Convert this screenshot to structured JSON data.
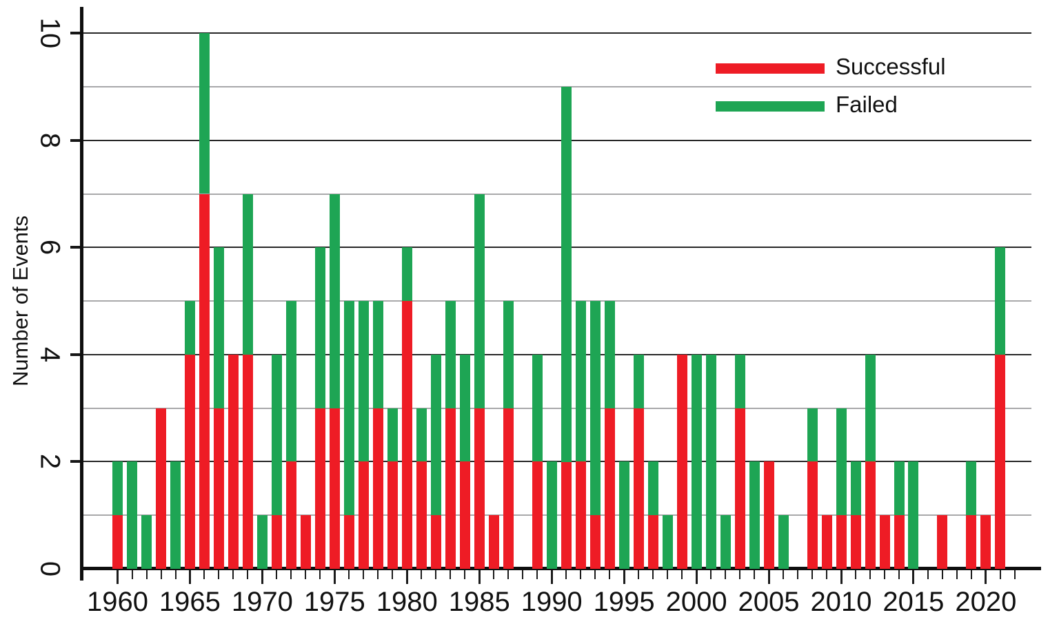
{
  "chart_data": {
    "type": "bar",
    "stacked": true,
    "title": "",
    "ylabel": "Number of Events",
    "ylim": [
      0,
      10
    ],
    "yticks": [
      0,
      2,
      4,
      6,
      8,
      10
    ],
    "gridlines_every": 1,
    "grid": {
      "minor_color": "#a8a8aa",
      "major_color": "#262626"
    },
    "x_major_ticks": [
      1960,
      1965,
      1970,
      1975,
      1980,
      1985,
      1990,
      1995,
      2000,
      2005,
      2010,
      2015,
      2020
    ],
    "x_minor_tick_range": [
      1960,
      2022
    ],
    "categories": [
      1960,
      1961,
      1962,
      1963,
      1964,
      1965,
      1966,
      1967,
      1968,
      1969,
      1970,
      1971,
      1972,
      1973,
      1974,
      1975,
      1976,
      1977,
      1978,
      1979,
      1980,
      1981,
      1982,
      1983,
      1984,
      1985,
      1986,
      1987,
      1988,
      1989,
      1990,
      1991,
      1992,
      1993,
      1994,
      1995,
      1996,
      1997,
      1998,
      1999,
      2000,
      2001,
      2002,
      2003,
      2004,
      2005,
      2006,
      2007,
      2008,
      2009,
      2010,
      2011,
      2012,
      2013,
      2014,
      2015,
      2016,
      2017,
      2018,
      2019,
      2020,
      2021
    ],
    "series": [
      {
        "name": "Successful",
        "color": "#EE1C25",
        "values": [
          1,
          0,
          0,
          3,
          0,
          4,
          7,
          3,
          4,
          4,
          0,
          1,
          2,
          1,
          3,
          3,
          1,
          2,
          3,
          2,
          5,
          2,
          1,
          3,
          2,
          3,
          1,
          3,
          0,
          2,
          0,
          2,
          2,
          1,
          3,
          0,
          3,
          1,
          0,
          4,
          0,
          0,
          0,
          3,
          0,
          2,
          0,
          0,
          2,
          1,
          1,
          1,
          2,
          1,
          1,
          0,
          0,
          1,
          0,
          1,
          1,
          4
        ]
      },
      {
        "name": "Failed",
        "color": "#1EA554",
        "values": [
          1,
          2,
          1,
          0,
          2,
          1,
          3,
          3,
          0,
          3,
          1,
          3,
          3,
          0,
          3,
          4,
          4,
          3,
          2,
          1,
          1,
          1,
          3,
          2,
          2,
          4,
          0,
          2,
          0,
          2,
          2,
          7,
          3,
          4,
          2,
          2,
          1,
          1,
          1,
          0,
          4,
          4,
          1,
          1,
          2,
          0,
          1,
          0,
          1,
          0,
          2,
          1,
          2,
          0,
          1,
          2,
          0,
          0,
          0,
          1,
          0,
          2
        ]
      }
    ],
    "legend": {
      "position": "upper right",
      "entries": [
        "Successful",
        "Failed"
      ]
    }
  }
}
